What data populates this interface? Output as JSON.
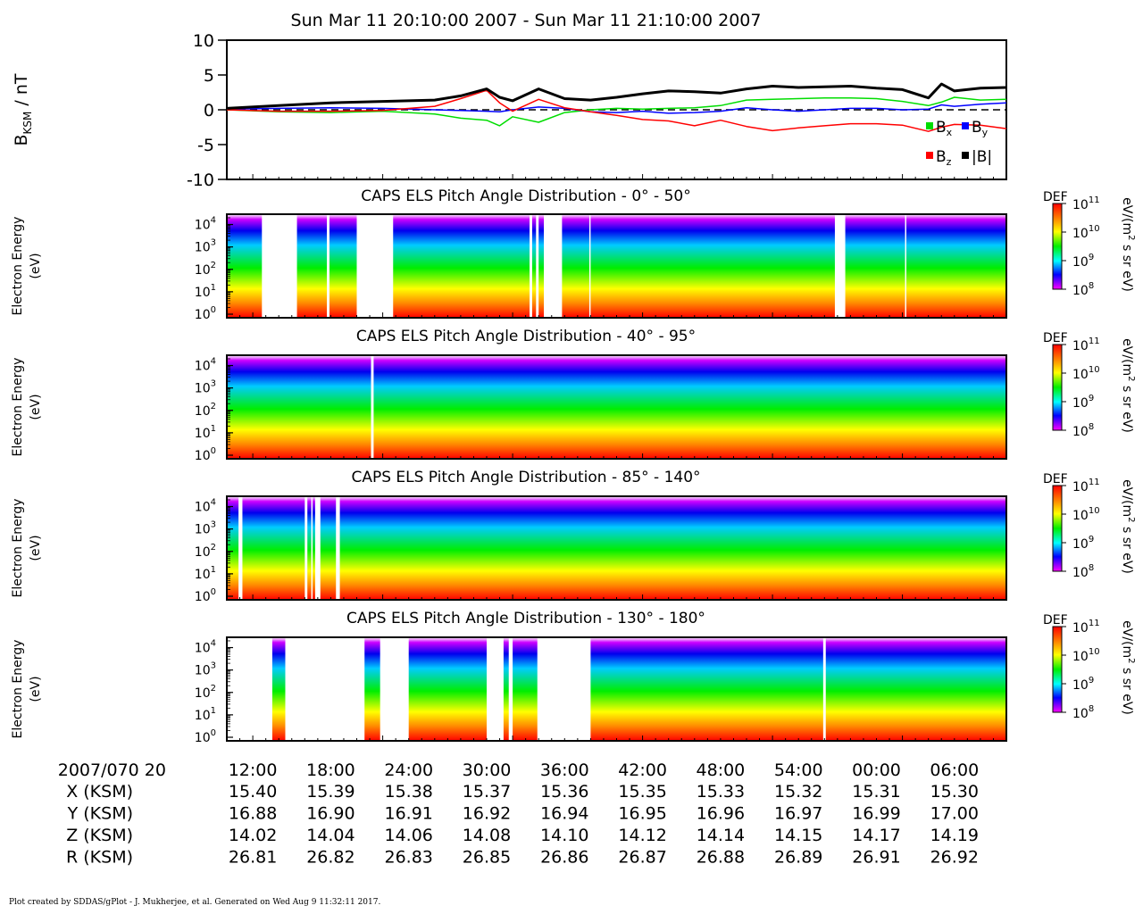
{
  "title": "Sun Mar 11 20:10:00 2007 - Sun Mar 11 21:10:00 2007",
  "footer_credit": "Plot created by SDDAS/gPlot - J. Mukherjee, et al.  Generated on Wed Aug 9 11:32:11 2017.",
  "chart_data": [
    {
      "type": "line",
      "ylabel_main": "B",
      "ylabel_sub": "KSM",
      "ylabel_unit": " / nT",
      "ylim": [
        -10,
        10
      ],
      "yticks": [
        10,
        5,
        0,
        -5,
        -10
      ],
      "ytick_labels": [
        "10",
        "5",
        "0",
        "-5",
        "-10"
      ],
      "zero_line": "dashed",
      "legend": [
        {
          "name": "B",
          "sub": "x",
          "color": "#00dd00"
        },
        {
          "name": "B",
          "sub": "y",
          "color": "#0000ff"
        },
        {
          "name": "B",
          "sub": "z",
          "color": "#ff0000"
        },
        {
          "name": "|B|",
          "sub": "",
          "color": "#000000"
        }
      ],
      "x_minutes": [
        0,
        4,
        8,
        12,
        16,
        18,
        20,
        21,
        22,
        24,
        26,
        28,
        30,
        32,
        34,
        36,
        38,
        40,
        42,
        44,
        46,
        48,
        50,
        52,
        54,
        55,
        56,
        58,
        60
      ],
      "series": [
        {
          "name": "B_x",
          "color": "#00dd00",
          "values": [
            0,
            -0.3,
            -0.4,
            -0.2,
            -0.6,
            -1.2,
            -1.5,
            -2.3,
            -1.0,
            -1.8,
            -0.4,
            0.0,
            0.2,
            0.1,
            0.2,
            0.3,
            0.6,
            1.4,
            1.5,
            1.6,
            1.7,
            1.7,
            1.6,
            1.2,
            0.6,
            1.1,
            1.8,
            1.4,
            1.5
          ]
        },
        {
          "name": "B_y",
          "color": "#0000ff",
          "values": [
            0.1,
            0.2,
            0.3,
            0.2,
            0.0,
            -0.1,
            -0.2,
            -0.3,
            0.0,
            0.4,
            0.2,
            -0.3,
            -0.4,
            -0.2,
            -0.5,
            -0.4,
            -0.2,
            0.3,
            0.0,
            -0.2,
            0.0,
            0.2,
            0.2,
            0.0,
            0.1,
            0.7,
            0.5,
            0.8,
            1.0
          ]
        },
        {
          "name": "B_z",
          "color": "#ff0000",
          "values": [
            0,
            -0.2,
            -0.2,
            -0.1,
            0.5,
            1.6,
            2.8,
            1.0,
            -0.2,
            1.5,
            0.3,
            -0.3,
            -0.8,
            -1.4,
            -1.6,
            -2.3,
            -1.5,
            -2.4,
            -3.0,
            -2.6,
            -2.3,
            -2.0,
            -2.0,
            -2.2,
            -3.1,
            -2.5,
            -2.1,
            -2.2,
            -2.7
          ]
        },
        {
          "name": "|B|",
          "color": "#000000",
          "values": [
            0.2,
            0.6,
            1.0,
            1.2,
            1.4,
            2.0,
            3.0,
            1.8,
            1.3,
            3.0,
            1.6,
            1.4,
            1.8,
            2.3,
            2.7,
            2.6,
            2.4,
            3.0,
            3.4,
            3.2,
            3.3,
            3.4,
            3.1,
            2.9,
            1.7,
            3.7,
            2.7,
            3.1,
            3.2
          ]
        }
      ]
    },
    {
      "type": "heatmap",
      "title": "CAPS ELS Pitch Angle Distribution - 0° - 50°"
    },
    {
      "type": "heatmap",
      "title": "CAPS ELS Pitch Angle Distribution - 40° - 95°"
    },
    {
      "type": "heatmap",
      "title": "CAPS ELS Pitch Angle Distribution - 85° - 140°"
    },
    {
      "type": "heatmap",
      "title": "CAPS ELS Pitch Angle Distribution - 130° - 180°"
    }
  ],
  "spectrogram_common": {
    "ylabel_line1": "Electron Energy",
    "ylabel_line2": "(eV)",
    "ytick_base": "10",
    "ytick_exponents": [
      "4",
      "3",
      "2",
      "1",
      "0"
    ],
    "colorbar": {
      "label": "DEF",
      "unit_prefix": "eV/(m",
      "unit_exp": "2",
      "unit_suffix": " s sr eV)",
      "tick_base": "10",
      "tick_exponents": [
        "11",
        "10",
        "9",
        "8"
      ],
      "colors": [
        "#ff0000",
        "#ff7f00",
        "#ffff00",
        "#00ee00",
        "#00ffff",
        "#0000ff",
        "#ff00ff"
      ]
    }
  },
  "ephemeris": {
    "first_label": "2007/070 20",
    "times": [
      "12:00",
      "18:00",
      "24:00",
      "30:00",
      "36:00",
      "42:00",
      "48:00",
      "54:00",
      "00:00",
      "06:00"
    ],
    "rows": [
      {
        "label": "X (KSM)",
        "values": [
          "15.40",
          "15.39",
          "15.38",
          "15.37",
          "15.36",
          "15.35",
          "15.33",
          "15.32",
          "15.31",
          "15.30"
        ]
      },
      {
        "label": "Y (KSM)",
        "values": [
          "16.88",
          "16.90",
          "16.91",
          "16.92",
          "16.94",
          "16.95",
          "16.96",
          "16.97",
          "16.99",
          "17.00"
        ]
      },
      {
        "label": "Z (KSM)",
        "values": [
          "14.02",
          "14.04",
          "14.06",
          "14.08",
          "14.10",
          "14.12",
          "14.14",
          "14.15",
          "14.17",
          "14.19"
        ]
      },
      {
        "label": "R (KSM)",
        "values": [
          "26.81",
          "26.82",
          "26.83",
          "26.85",
          "26.86",
          "26.87",
          "26.88",
          "26.89",
          "26.91",
          "26.92"
        ]
      }
    ]
  }
}
